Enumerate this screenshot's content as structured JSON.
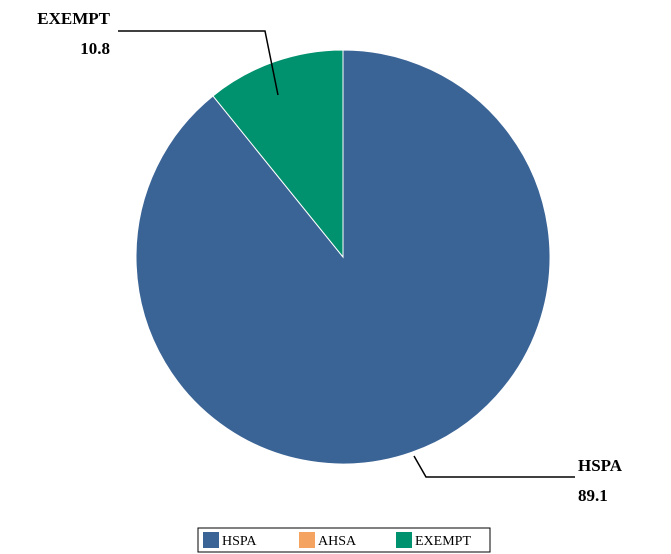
{
  "chart_data": {
    "type": "pie",
    "title": "",
    "categories": [
      "HSPA",
      "AHSA",
      "EXEMPT"
    ],
    "values": [
      89.1,
      0.0,
      10.8
    ],
    "colors": [
      "#3b6496",
      "#f4a460",
      "#00916e"
    ],
    "data_labels": [
      {
        "category": "HSPA",
        "value": "89.1"
      },
      {
        "category": "EXEMPT",
        "value": "10.8"
      }
    ],
    "legend": {
      "position": "bottom",
      "entries": [
        "HSPA",
        "AHSA",
        "EXEMPT"
      ]
    }
  }
}
